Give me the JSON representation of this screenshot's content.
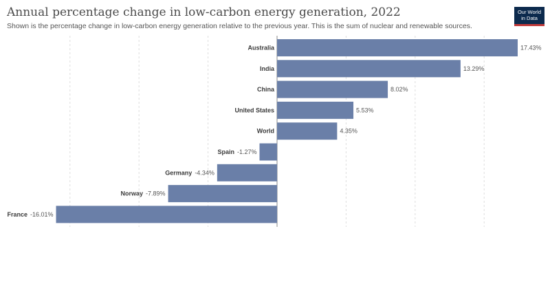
{
  "header": {
    "title": "Annual percentage change in low-carbon energy generation, 2022",
    "subtitle": "Shown is the percentage change in low-carbon energy generation relative to the previous year. This is the sum of nuclear and renewable sources."
  },
  "logo": {
    "line1": "Our World",
    "line2": "in Data"
  },
  "colors": {
    "bar": "#6a7fa8",
    "grid": "#dddddd",
    "axis": "#888888"
  },
  "chart_data": {
    "type": "bar",
    "orientation": "horizontal",
    "title": "Annual percentage change in low-carbon energy generation, 2022",
    "xlim": [
      -16.01,
      17.43
    ],
    "gridlines": [
      -15,
      -10,
      -5,
      0,
      5,
      10,
      15
    ],
    "grid": true,
    "categories": [
      "Australia",
      "India",
      "China",
      "United States",
      "World",
      "Spain",
      "Germany",
      "Norway",
      "France"
    ],
    "values": [
      17.43,
      13.29,
      8.02,
      5.53,
      4.35,
      -1.27,
      -4.34,
      -7.89,
      -16.01
    ],
    "value_labels": [
      "17.43%",
      "13.29%",
      "8.02%",
      "5.53%",
      "4.35%",
      "-1.27%",
      "-4.34%",
      "-7.89%",
      "-16.01%"
    ]
  }
}
